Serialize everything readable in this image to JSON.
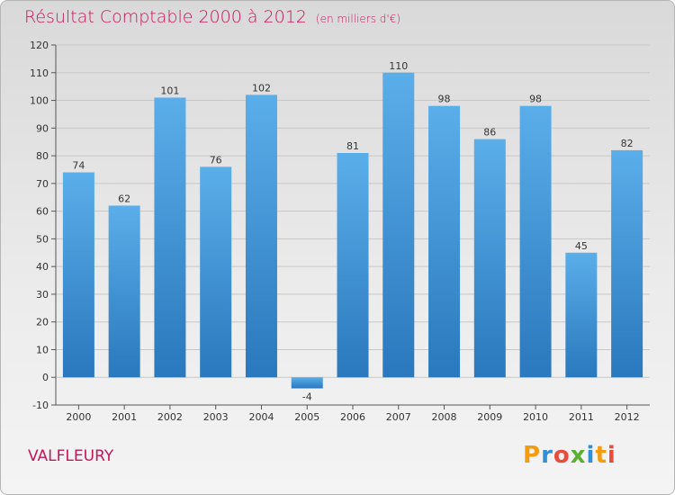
{
  "chart_data": {
    "type": "bar",
    "title": "Résultat Comptable 2000 à 2012",
    "subtitle": "(en milliers d'€)",
    "categories": [
      "2000",
      "2001",
      "2002",
      "2003",
      "2004",
      "2005",
      "2006",
      "2007",
      "2008",
      "2009",
      "2010",
      "2011",
      "2012"
    ],
    "values": [
      74,
      62,
      101,
      76,
      102,
      -4,
      81,
      110,
      98,
      86,
      98,
      45,
      82
    ],
    "data_labels": [
      "74",
      "62",
      "101",
      "76",
      "102",
      "-4",
      "81",
      "110",
      "98",
      "86",
      "98",
      "45",
      "82"
    ],
    "ylim": [
      -10,
      120
    ],
    "yticks": [
      -10,
      0,
      10,
      20,
      30,
      40,
      50,
      60,
      70,
      80,
      90,
      100,
      110,
      120
    ],
    "xlabel": "",
    "ylabel": "",
    "grid": true,
    "bar_color": "#2c7fc1",
    "bar_color_light": "#5aaee9"
  },
  "commune": "VALFLEURY",
  "brand": {
    "letters": [
      "P",
      "r",
      "o",
      "x",
      "i",
      "t",
      "i"
    ],
    "colors": [
      "#f39c12",
      "#2f8fd8",
      "#e74c3c",
      "#5ab031",
      "#2f8fd8",
      "#f39c12",
      "#e74c3c"
    ]
  }
}
